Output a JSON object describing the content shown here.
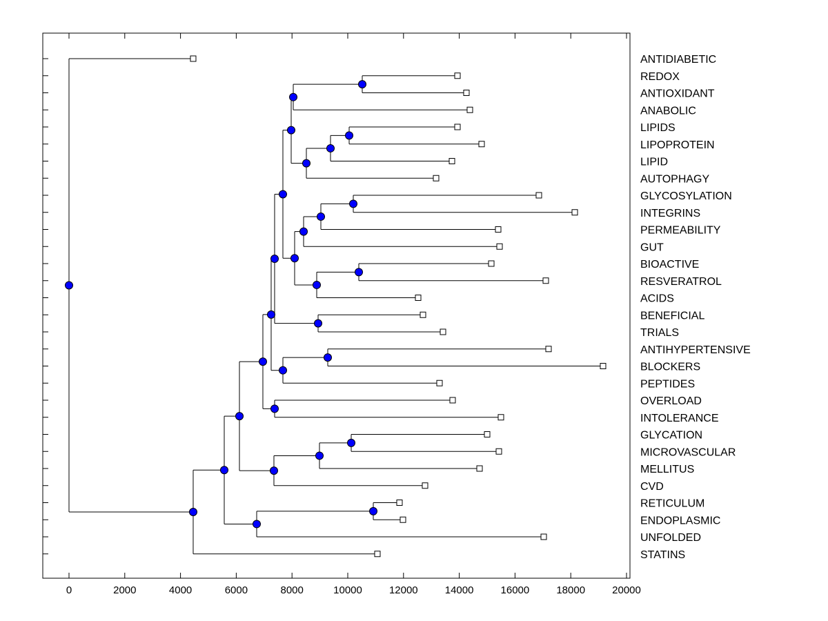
{
  "chart_data": {
    "type": "dendrogram",
    "title": "",
    "xlabel": "",
    "ylabel": "",
    "xlim": [
      -900,
      20100
    ],
    "xticks": [
      0,
      2000,
      4000,
      6000,
      8000,
      10000,
      12000,
      14000,
      16000,
      18000,
      20000
    ],
    "colors": {
      "node": "#0000ff",
      "line": "#000000",
      "leaf": "#ffffff"
    },
    "tree": {
      "h": 0,
      "c": [
        {
          "label": "ANTIDIABETIC",
          "h": 4455
        },
        {
          "h": 4455,
          "c": [
            {
              "h": 5569,
              "c": [
                {
                  "h": 6114,
                  "c": [
                    {
                      "h": 6955,
                      "c": [
                        {
                          "h": 7252,
                          "c": [
                            {
                              "h": 7376,
                              "c": [
                                {
                                  "h": 7673,
                                  "c": [
                                    {
                                      "h": 7970,
                                      "c": [
                                        {
                                          "h": 8045,
                                          "c": [
                                            {
                                              "h": 10520,
                                              "c": [
                                                {
                                                  "label": "REDOX",
                                                  "h": 13936
                                                },
                                                {
                                                  "label": "ANTIOXIDANT",
                                                  "h": 14257
                                                }
                                              ]
                                            },
                                            {
                                              "label": "ANABOLIC",
                                              "h": 14381
                                            }
                                          ]
                                        },
                                        {
                                          "h": 8515,
                                          "c": [
                                            {
                                              "h": 9381,
                                              "c": [
                                                {
                                                  "h": 10050,
                                                  "c": [
                                                    {
                                                      "label": "LIPIDS",
                                                      "h": 13936
                                                    },
                                                    {
                                                      "label": "LIPOPROTEIN",
                                                      "h": 14802
                                                    }
                                                  ]
                                                },
                                                {
                                                  "label": "LIPID",
                                                  "h": 13738
                                                }
                                              ]
                                            },
                                            {
                                              "label": "AUTOPHAGY",
                                              "h": 13168
                                            }
                                          ]
                                        }
                                      ]
                                    },
                                    {
                                      "h": 8094,
                                      "c": [
                                        {
                                          "h": 8416,
                                          "c": [
                                            {
                                              "h": 9035,
                                              "c": [
                                                {
                                                  "h": 10198,
                                                  "c": [
                                                    {
                                                      "label": "GLYCOSYLATION",
                                                      "h": 16856
                                                    },
                                                    {
                                                      "label": "INTEGRINS",
                                                      "h": 18144
                                                    }
                                                  ]
                                                },
                                                {
                                                  "label": "PERMEABILITY",
                                                  "h": 15396
                                                }
                                              ]
                                            },
                                            {
                                              "label": "GUT",
                                              "h": 15446
                                            }
                                          ]
                                        },
                                        {
                                          "h": 8886,
                                          "c": [
                                            {
                                              "h": 10396,
                                              "c": [
                                                {
                                                  "label": "BIOACTIVE",
                                                  "h": 15149
                                                },
                                                {
                                                  "label": "RESVERATROL",
                                                  "h": 17104
                                                }
                                              ]
                                            },
                                            {
                                              "label": "ACIDS",
                                              "h": 12525
                                            }
                                          ]
                                        }
                                      ]
                                    }
                                  ]
                                },
                                {
                                  "h": 8936,
                                  "c": [
                                    {
                                      "label": "BENEFICIAL",
                                      "h": 12698
                                    },
                                    {
                                      "label": "TRIALS",
                                      "h": 13416
                                    }
                                  ]
                                }
                              ]
                            },
                            {
                              "h": 7673,
                              "c": [
                                {
                                  "h": 9282,
                                  "c": [
                                    {
                                      "label": "ANTIHYPERTENSIVE",
                                      "h": 17203
                                    },
                                    {
                                      "label": "BLOCKERS",
                                      "h": 19158
                                    }
                                  ]
                                },
                                {
                                  "label": "PEPTIDES",
                                  "h": 13292
                                }
                              ]
                            }
                          ]
                        },
                        {
                          "h": 7376,
                          "c": [
                            {
                              "label": "OVERLOAD",
                              "h": 13762
                            },
                            {
                              "label": "INTOLERANCE",
                              "h": 15495
                            }
                          ]
                        }
                      ]
                    },
                    {
                      "h": 7351,
                      "c": [
                        {
                          "h": 8985,
                          "c": [
                            {
                              "h": 10124,
                              "c": [
                                {
                                  "label": "GLYCATION",
                                  "h": 15000
                                },
                                {
                                  "label": "MICROVASCULAR",
                                  "h": 15421
                                }
                              ]
                            },
                            {
                              "label": "MELLITUS",
                              "h": 14728
                            }
                          ]
                        },
                        {
                          "label": "CVD",
                          "h": 12772
                        }
                      ]
                    }
                  ]
                },
                {
                  "h": 6733,
                  "c": [
                    {
                      "h": 10916,
                      "c": [
                        {
                          "label": "RETICULUM",
                          "h": 11856
                        },
                        {
                          "label": "ENDOPLASMIC",
                          "h": 11980
                        }
                      ]
                    },
                    {
                      "label": "UNFOLDED",
                      "h": 17030
                    }
                  ]
                }
              ]
            },
            {
              "label": "STATINS",
              "h": 11064
            }
          ]
        }
      ]
    }
  }
}
